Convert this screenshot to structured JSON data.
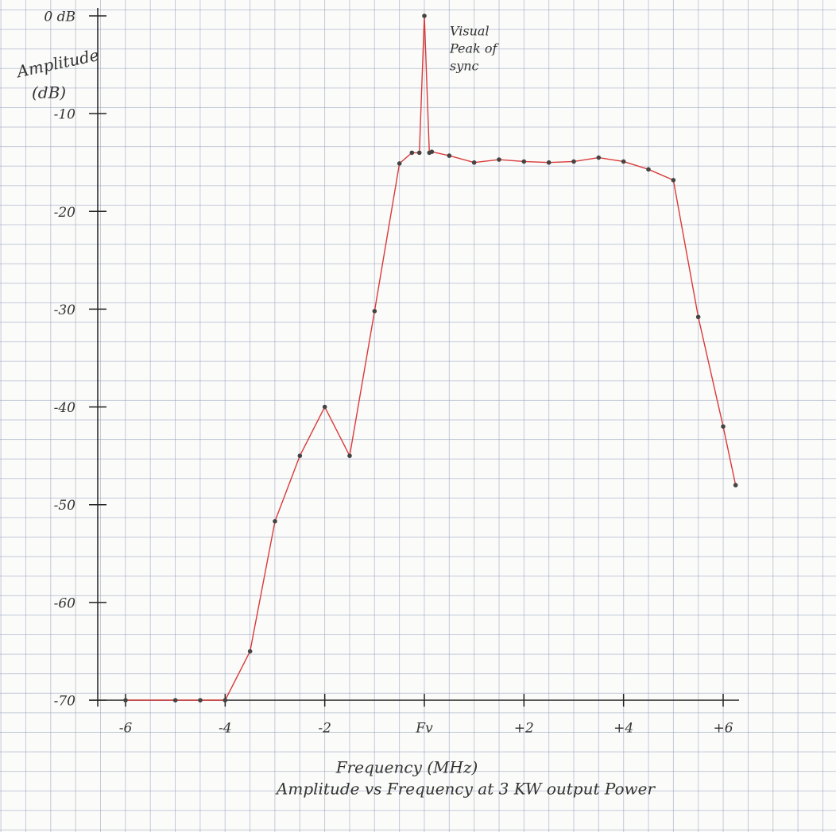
{
  "chart_data": {
    "type": "line",
    "title": "Amplitude vs Frequency at 3 KW output Power",
    "xlabel": "Frequency (MHz)",
    "ylabel": [
      "Amplitude",
      "(dB)"
    ],
    "annotation": [
      "Visual",
      "Peak of",
      "sync"
    ],
    "xlim": [
      -6,
      6
    ],
    "ylim": [
      -70,
      0
    ],
    "xticks": [
      -6,
      -4,
      -2,
      {
        "value": 0,
        "label": "Fv"
      },
      {
        "value": 2,
        "label": "+2"
      },
      {
        "value": 4,
        "label": "+4"
      },
      {
        "value": 6,
        "label": "+6"
      }
    ],
    "yticks": [
      -70,
      -60,
      -50,
      -40,
      -30,
      -20,
      -10,
      {
        "value": 0,
        "label": "0 dB"
      }
    ],
    "color": "#d93a3a",
    "marker_color": "#444444",
    "x": [
      -6,
      -5,
      -4.5,
      -4,
      -3.5,
      -3,
      -2.5,
      -2,
      -1.5,
      -1,
      -0.5,
      -0.25,
      -0.1,
      0,
      0.1,
      0.15,
      0.5,
      1,
      1.5,
      2,
      2.5,
      3,
      3.5,
      4,
      4.5,
      5,
      5.5,
      6,
      6.25
    ],
    "values": [
      -70,
      -70,
      -70,
      -70,
      -65,
      -51.7,
      -45,
      -40,
      -45,
      -30.2,
      -15.1,
      -14,
      -14,
      0,
      -14,
      -13.9,
      -14.3,
      -15,
      -14.7,
      -14.9,
      -15,
      -14.9,
      -14.5,
      -14.9,
      -15.7,
      -16.8,
      -30.8,
      -42,
      -48
    ]
  }
}
